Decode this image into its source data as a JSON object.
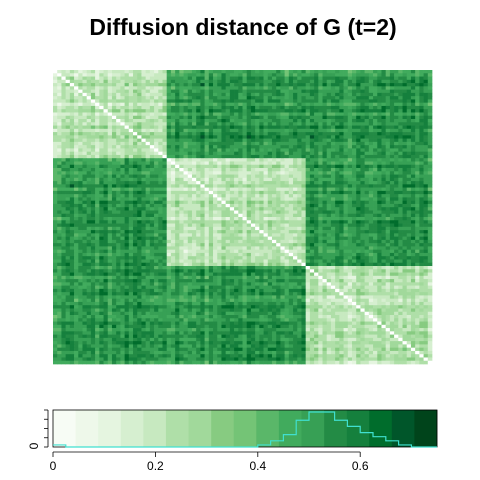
{
  "chart_data": {
    "type": "heatmap",
    "title": "Diffusion distance of G (t=2)",
    "n_nodes": 90,
    "block_boundaries": [
      27,
      60
    ],
    "diagonal_value": 0,
    "within_block_mean": 0.22,
    "between_block_mean": 0.52,
    "diagonal_color": "#ffffff",
    "grid": false,
    "legend": {
      "position": "bottom",
      "type": "color-key-with-histogram",
      "range": [
        0,
        0.75
      ],
      "ticks": [
        0,
        0.2,
        0.4,
        0.6
      ],
      "tick_labels": [
        "0",
        "0.2",
        "0.4",
        "0.6"
      ],
      "y_tick_labels": [
        "0"
      ],
      "histogram_color": "#40e0d0",
      "palette": [
        "#f7fcf5",
        "#eef8ea",
        "#e5f5e0",
        "#d6efd0",
        "#c7e9c0",
        "#afdfa8",
        "#a1d99b",
        "#87cb81",
        "#74c476",
        "#5ab769",
        "#41ab5d",
        "#37a055",
        "#238b45",
        "#15803d",
        "#006d2c",
        "#00562a",
        "#00441b"
      ],
      "histogram_counts": [
        1,
        0,
        0,
        0,
        0,
        0,
        0,
        0,
        0,
        0,
        0,
        0,
        0,
        0,
        0,
        0,
        1,
        3,
        6,
        13,
        17,
        17,
        13,
        10,
        7,
        5,
        3,
        1,
        0,
        0
      ]
    }
  }
}
